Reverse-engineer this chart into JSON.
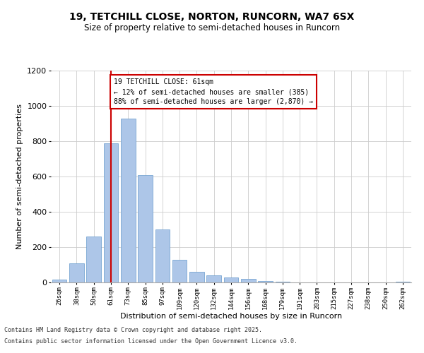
{
  "title_line1": "19, TETCHILL CLOSE, NORTON, RUNCORN, WA7 6SX",
  "title_line2": "Size of property relative to semi-detached houses in Runcorn",
  "xlabel": "Distribution of semi-detached houses by size in Runcorn",
  "ylabel": "Number of semi-detached properties",
  "footer_line1": "Contains HM Land Registry data © Crown copyright and database right 2025.",
  "footer_line2": "Contains public sector information licensed under the Open Government Licence v3.0.",
  "annotation_title": "19 TETCHILL CLOSE: 61sqm",
  "annotation_line1": "← 12% of semi-detached houses are smaller (385)",
  "annotation_line2": "88% of semi-detached houses are larger (2,870) →",
  "bar_labels": [
    "26sqm",
    "38sqm",
    "50sqm",
    "61sqm",
    "73sqm",
    "85sqm",
    "97sqm",
    "109sqm",
    "120sqm",
    "132sqm",
    "144sqm",
    "156sqm",
    "168sqm",
    "179sqm",
    "191sqm",
    "203sqm",
    "215sqm",
    "227sqm",
    "238sqm",
    "250sqm",
    "262sqm"
  ],
  "bar_values": [
    15,
    110,
    260,
    790,
    930,
    610,
    300,
    130,
    60,
    40,
    30,
    20,
    10,
    5,
    2,
    1,
    0,
    0,
    0,
    0,
    5
  ],
  "bar_color": "#adc6e8",
  "bar_edge_color": "#6699cc",
  "highlight_bar_index": 3,
  "highlight_line_color": "#cc0000",
  "annotation_box_color": "#cc0000",
  "ylim": [
    0,
    1200
  ],
  "yticks": [
    0,
    200,
    400,
    600,
    800,
    1000,
    1200
  ],
  "background_color": "#ffffff",
  "grid_color": "#cccccc"
}
